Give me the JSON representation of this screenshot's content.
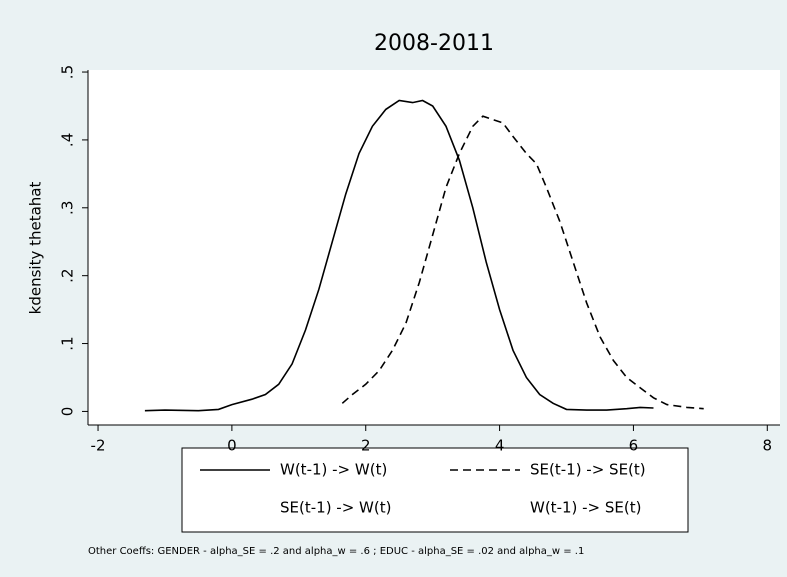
{
  "chart_data": {
    "type": "line",
    "title": "2008-2011",
    "ylabel": "kdensity thetahat",
    "xlim": [
      -2.15,
      8.19
    ],
    "xticks": [
      -2,
      0,
      2,
      4,
      6,
      8
    ],
    "ylim": [
      -0.02,
      0.503
    ],
    "yticks": [
      0,
      {
        "value": 0.1,
        "label": ".1"
      },
      {
        "value": 0.2,
        "label": ".2"
      },
      {
        "value": 0.3,
        "label": ".3"
      },
      {
        "value": 0.4,
        "label": ".4"
      },
      {
        "value": 0.5,
        "label": ".5"
      }
    ],
    "grid": false,
    "legend": "bottom",
    "series": [
      {
        "name": "W(t-1) -> W(t)",
        "color": "#000000",
        "dash": "solid",
        "x": [
          -1.3,
          -1,
          -0.5,
          -0.2,
          0,
          0.3,
          0.5,
          0.7,
          0.9,
          1.1,
          1.3,
          1.5,
          1.7,
          1.9,
          2.1,
          2.3,
          2.5,
          2.7,
          2.85,
          3.0,
          3.2,
          3.4,
          3.6,
          3.8,
          4.0,
          4.2,
          4.4,
          4.6,
          4.8,
          5.0,
          5.3,
          5.6,
          5.9,
          6.1,
          6.3
        ],
        "values": [
          0.001,
          0.002,
          0.001,
          0.003,
          0.01,
          0.018,
          0.025,
          0.04,
          0.07,
          0.12,
          0.18,
          0.25,
          0.32,
          0.38,
          0.42,
          0.445,
          0.458,
          0.455,
          0.458,
          0.45,
          0.42,
          0.37,
          0.3,
          0.22,
          0.15,
          0.09,
          0.05,
          0.025,
          0.012,
          0.003,
          0.002,
          0.002,
          0.004,
          0.006,
          0.005
        ]
      },
      {
        "name": "SE(t-1) -> SE(t)",
        "color": "#000000",
        "dash": "dashed",
        "x": [
          1.65,
          1.8,
          2.0,
          2.2,
          2.4,
          2.6,
          2.8,
          3.0,
          3.2,
          3.4,
          3.6,
          3.75,
          3.9,
          4.05,
          4.2,
          4.4,
          4.55,
          4.7,
          4.9,
          5.1,
          5.3,
          5.5,
          5.7,
          5.9,
          6.1,
          6.3,
          6.5,
          6.8,
          7.05
        ],
        "values": [
          0.012,
          0.025,
          0.04,
          0.06,
          0.09,
          0.13,
          0.19,
          0.26,
          0.33,
          0.38,
          0.42,
          0.435,
          0.43,
          0.425,
          0.405,
          0.38,
          0.365,
          0.33,
          0.28,
          0.22,
          0.16,
          0.11,
          0.075,
          0.05,
          0.035,
          0.02,
          0.01,
          0.006,
          0.004
        ]
      },
      {
        "name": "SE(t-1) -> W(t)",
        "color": "#ffffff",
        "dash": "solid",
        "x": [],
        "values": []
      },
      {
        "name": "W(t-1) -> SE(t)",
        "color": "#ffffff",
        "dash": "solid",
        "x": [],
        "values": []
      }
    ],
    "note": "Other Coeffs: GENDER - alpha_SE = .2 and alpha_w = .6 ; EDUC - alpha_SE = .02  and alpha_w = .1"
  }
}
